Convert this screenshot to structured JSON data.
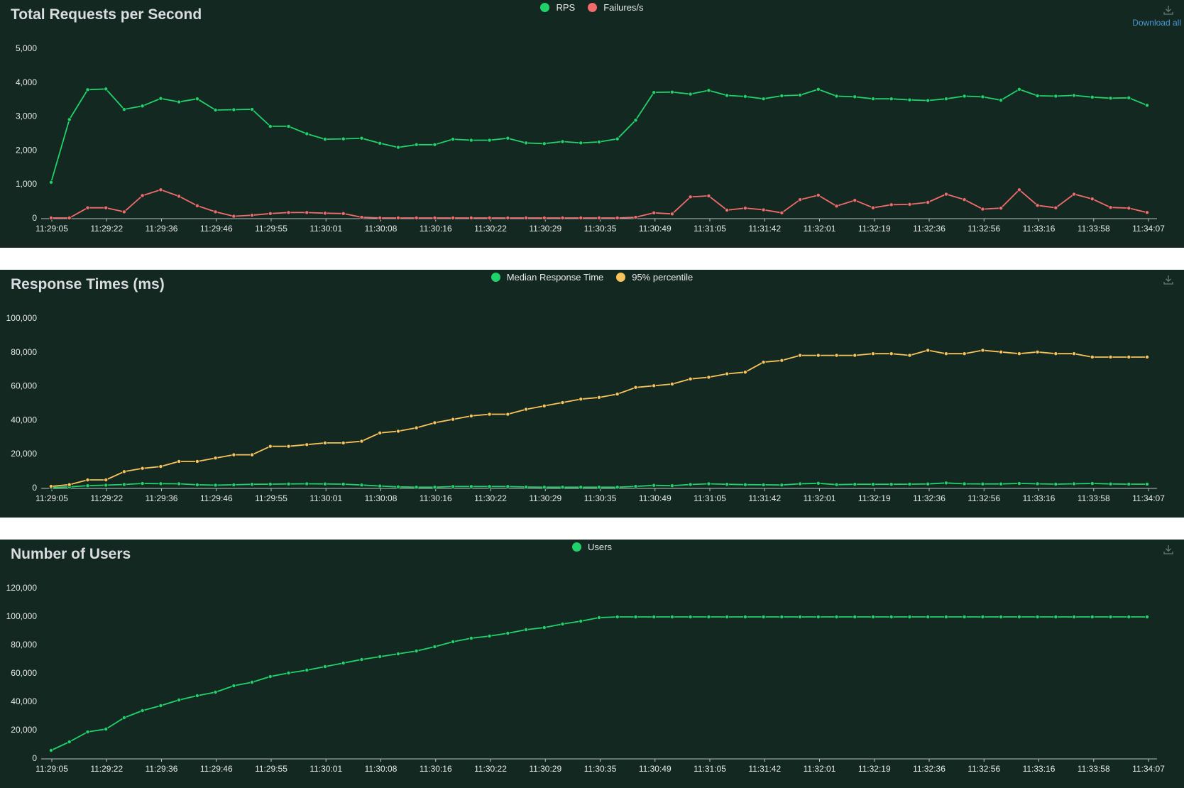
{
  "panels": {
    "rps": {
      "title": "Total Requests per Second",
      "download_label": "Download all"
    },
    "resp": {
      "title": "Response Times (ms)"
    },
    "users": {
      "title": "Number of Users"
    }
  },
  "colors": {
    "background": "#142822",
    "green": "#1fd26a",
    "red": "#f26b6b",
    "yellow": "#f7c35a",
    "axis_text": "#e6e8ea"
  },
  "chart_data": [
    {
      "type": "line",
      "title": "Total Requests per Second",
      "x_labels": [
        "11:29:05",
        "11:29:22",
        "11:29:36",
        "11:29:46",
        "11:29:55",
        "11:30:01",
        "11:30:08",
        "11:30:16",
        "11:30:22",
        "11:30:29",
        "11:30:35",
        "11:30:49",
        "11:31:05",
        "11:31:42",
        "11:32:01",
        "11:32:19",
        "11:32:36",
        "11:32:56",
        "11:33:16",
        "11:33:58",
        "11:34:07"
      ],
      "y_ticks": [
        "5,000",
        "4,000",
        "3,000",
        "2,000",
        "1,000",
        "0"
      ],
      "ylim": [
        0,
        5000
      ],
      "legend_position": "top-center",
      "series": [
        {
          "name": "RPS",
          "color": "#1fd26a",
          "values": [
            1050,
            2900,
            3780,
            3800,
            3200,
            3300,
            3520,
            3420,
            3510,
            3180,
            3190,
            3200,
            2700,
            2700,
            2480,
            2320,
            2330,
            2350,
            2200,
            2080,
            2160,
            2160,
            2320,
            2290,
            2290,
            2350,
            2210,
            2190,
            2250,
            2210,
            2240,
            2330,
            2880,
            3700,
            3710,
            3650,
            3760,
            3610,
            3580,
            3510,
            3600,
            3620,
            3790,
            3590,
            3570,
            3510,
            3510,
            3480,
            3460,
            3510,
            3590,
            3570,
            3470,
            3790,
            3600,
            3590,
            3610,
            3560,
            3530,
            3540,
            3320
          ]
        },
        {
          "name": "Failures/s",
          "color": "#f26b6b",
          "values": [
            0,
            0,
            300,
            300,
            180,
            660,
            830,
            640,
            360,
            180,
            50,
            80,
            130,
            160,
            160,
            140,
            130,
            20,
            0,
            0,
            0,
            0,
            0,
            0,
            0,
            0,
            0,
            0,
            0,
            0,
            0,
            0,
            20,
            150,
            120,
            620,
            650,
            230,
            290,
            240,
            150,
            540,
            670,
            350,
            520,
            300,
            390,
            400,
            460,
            700,
            540,
            260,
            290,
            830,
            370,
            300,
            700,
            560,
            310,
            290,
            160
          ]
        }
      ]
    },
    {
      "type": "line",
      "title": "Response Times (ms)",
      "x_labels": [
        "11:29:05",
        "11:29:22",
        "11:29:36",
        "11:29:46",
        "11:29:55",
        "11:30:01",
        "11:30:08",
        "11:30:16",
        "11:30:22",
        "11:30:29",
        "11:30:35",
        "11:30:49",
        "11:31:05",
        "11:31:42",
        "11:32:01",
        "11:32:19",
        "11:32:36",
        "11:32:56",
        "11:33:16",
        "11:33:58",
        "11:34:07"
      ],
      "y_ticks": [
        "100,000",
        "80,000",
        "60,000",
        "40,000",
        "20,000",
        "0"
      ],
      "ylim": [
        0,
        100000
      ],
      "legend_position": "top-center",
      "series": [
        {
          "name": "Median Response Time",
          "color": "#1fd26a",
          "values": [
            100,
            500,
            1200,
            1500,
            1900,
            2500,
            2400,
            2300,
            1700,
            1500,
            1700,
            2000,
            2100,
            2200,
            2300,
            2200,
            2100,
            1600,
            1000,
            500,
            300,
            300,
            700,
            700,
            700,
            700,
            400,
            300,
            300,
            300,
            300,
            300,
            800,
            1400,
            1200,
            1900,
            2300,
            2000,
            1800,
            1700,
            1600,
            2300,
            2600,
            1800,
            2000,
            2000,
            2000,
            2100,
            2200,
            2800,
            2300,
            2200,
            2200,
            2500,
            2300,
            2100,
            2300,
            2500,
            2200,
            2100,
            2100
          ]
        },
        {
          "name": "95% percentile",
          "color": "#f7c35a",
          "values": [
            800,
            1800,
            4600,
            4600,
            9500,
            11400,
            12500,
            15500,
            15500,
            17500,
            19400,
            19400,
            24400,
            24400,
            25400,
            26400,
            26400,
            27400,
            32300,
            33300,
            35300,
            38300,
            40300,
            42300,
            43300,
            43300,
            46200,
            48200,
            50200,
            52200,
            53200,
            55200,
            59100,
            60100,
            61100,
            64100,
            65100,
            67100,
            68100,
            74000,
            75000,
            78000,
            78000,
            78000,
            78000,
            79000,
            79000,
            78000,
            81000,
            79000,
            79000,
            81000,
            80000,
            79000,
            80000,
            79000,
            79000,
            77000,
            77000,
            77000,
            77000
          ]
        }
      ]
    },
    {
      "type": "line",
      "title": "Number of Users",
      "x_labels": [
        "11:29:05",
        "11:29:22",
        "11:29:36",
        "11:29:46",
        "11:29:55",
        "11:30:01",
        "11:30:08",
        "11:30:16",
        "11:30:22",
        "11:30:29",
        "11:30:35",
        "11:30:49",
        "11:31:05",
        "11:31:42",
        "11:32:01",
        "11:32:19",
        "11:32:36",
        "11:32:56",
        "11:33:16",
        "11:33:58",
        "11:34:07"
      ],
      "y_ticks": [
        "120,000",
        "100,000",
        "80,000",
        "60,000",
        "40,000",
        "20,000",
        "0"
      ],
      "ylim": [
        0,
        120000
      ],
      "legend_position": "top-center",
      "series": [
        {
          "name": "Users",
          "color": "#1fd26a",
          "values": [
            5500,
            11500,
            18500,
            20500,
            28500,
            33500,
            37000,
            41000,
            44000,
            46500,
            51000,
            53500,
            57500,
            60000,
            62000,
            64500,
            67000,
            69500,
            71500,
            73500,
            75500,
            78500,
            82000,
            84500,
            86000,
            88000,
            90500,
            92000,
            94500,
            96500,
            99000,
            99500,
            99500,
            99500,
            99500,
            99500,
            99500,
            99500,
            99500,
            99500,
            99500,
            99500,
            99500,
            99500,
            99500,
            99500,
            99500,
            99500,
            99500,
            99500,
            99500,
            99500,
            99500,
            99500,
            99500,
            99500,
            99500,
            99500,
            99500,
            99500,
            99500
          ]
        }
      ]
    }
  ]
}
